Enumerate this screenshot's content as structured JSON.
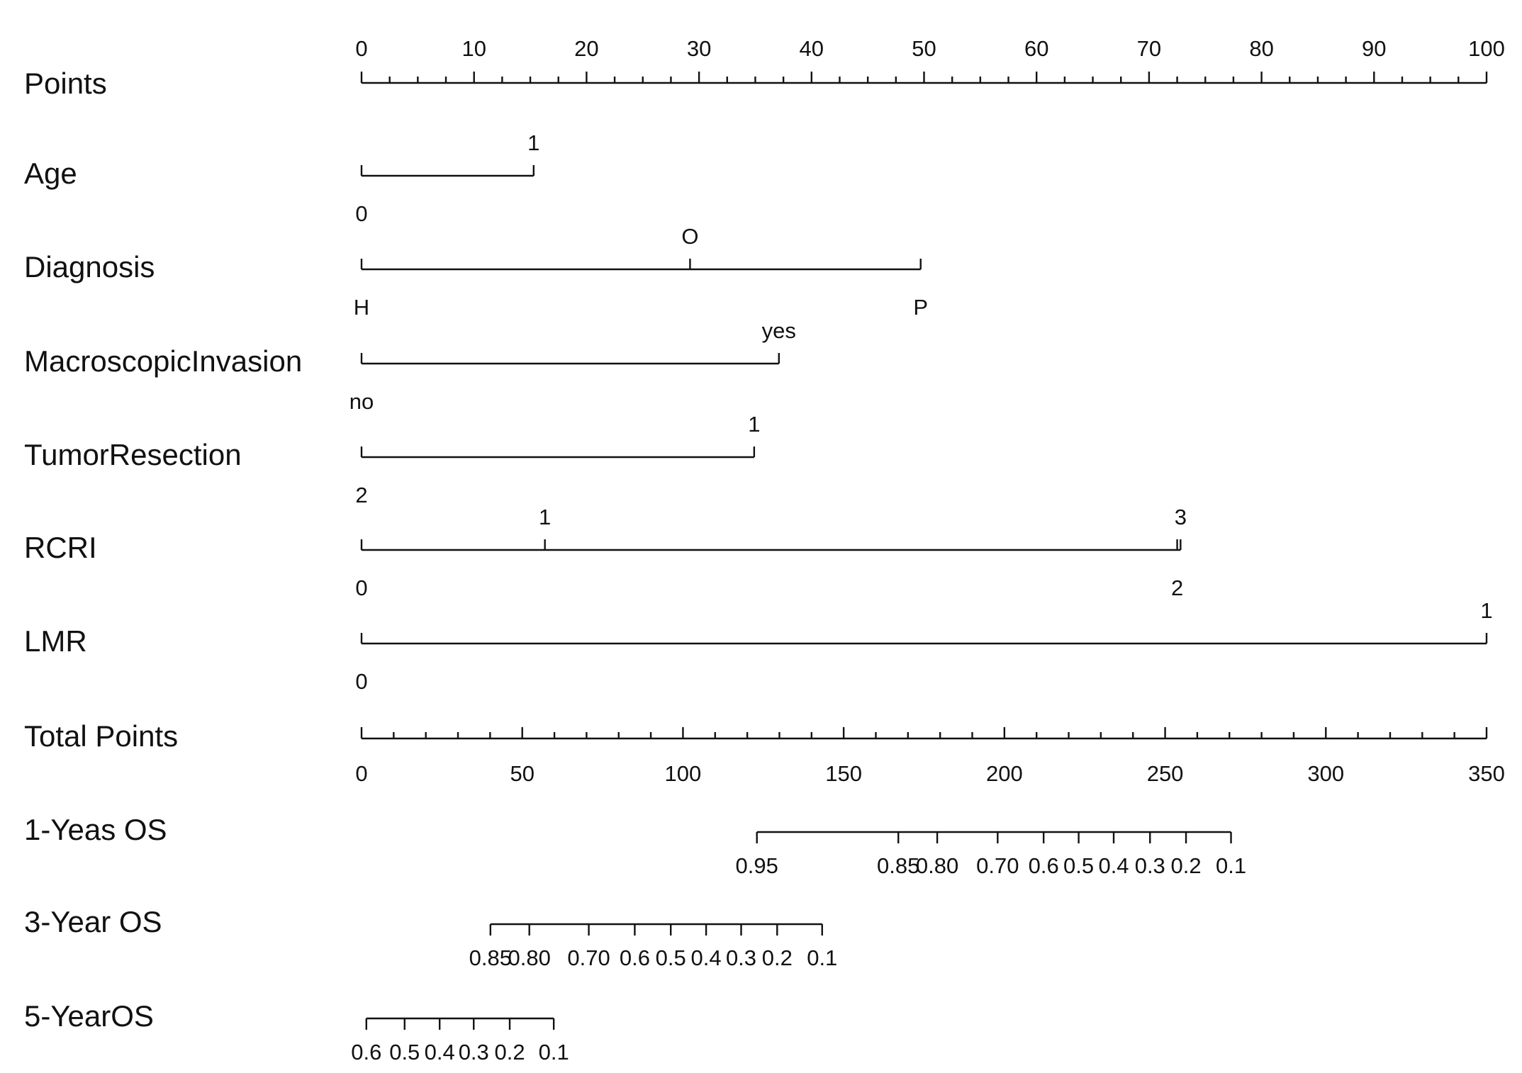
{
  "chart_data": {
    "type": "nomogram",
    "points_axis": {
      "label": "Points",
      "xlim": [
        0,
        100
      ],
      "ticks": [
        0,
        10,
        20,
        30,
        40,
        50,
        60,
        70,
        80,
        90,
        100
      ]
    },
    "variables": [
      {
        "name": "Age",
        "levels": [
          "0",
          "1"
        ],
        "points": [
          0,
          15.3
        ]
      },
      {
        "name": "Diagnosis",
        "levels": [
          "H",
          "O",
          "P"
        ],
        "points": [
          0,
          29.2,
          49.7
        ]
      },
      {
        "name": "MacroscopicInvasion",
        "levels": [
          "no",
          "yes"
        ],
        "points": [
          0,
          37.1
        ]
      },
      {
        "name": "TumorResection",
        "levels": [
          "2",
          "1"
        ],
        "points": [
          0,
          34.9
        ]
      },
      {
        "name": "RCRI",
        "levels": [
          "0",
          "1",
          "2",
          "3"
        ],
        "points": [
          0,
          16.3,
          72.5,
          72.8
        ]
      },
      {
        "name": "LMR",
        "levels": [
          "0",
          "1"
        ],
        "points": [
          0,
          100
        ]
      }
    ],
    "total_points_axis": {
      "label": "Total Points",
      "xlim": [
        0,
        350
      ],
      "ticks": [
        0,
        50,
        100,
        150,
        200,
        250,
        300,
        350
      ]
    },
    "probability_axes": [
      {
        "name": "1-Yeas OS",
        "ticks": [
          0.95,
          0.85,
          {
            "value": 0.8,
            "label": "0.80"
          },
          {
            "value": 0.7,
            "label": "0.70"
          },
          0.6,
          0.5,
          0.4,
          0.3,
          0.2,
          0.1
        ],
        "points": [
          123.0,
          167.0,
          179.1,
          197.9,
          212.2,
          223.1,
          234.0,
          245.3,
          256.5,
          270.5
        ]
      },
      {
        "name": "3-Year OS",
        "ticks": [
          0.85,
          {
            "value": 0.8,
            "label": "0.80"
          },
          {
            "value": 0.7,
            "label": "0.70"
          },
          0.6,
          0.5,
          0.4,
          0.3,
          0.2,
          0.1
        ],
        "points": [
          40.1,
          52.2,
          70.7,
          85.0,
          96.2,
          107.2,
          118.1,
          129.3,
          143.3
        ]
      },
      {
        "name": "5-YearOS",
        "ticks": [
          0.6,
          0.5,
          0.4,
          0.3,
          0.2,
          0.1
        ],
        "points": [
          1.5,
          13.4,
          24.3,
          34.9,
          46.1,
          59.8
        ]
      }
    ]
  }
}
